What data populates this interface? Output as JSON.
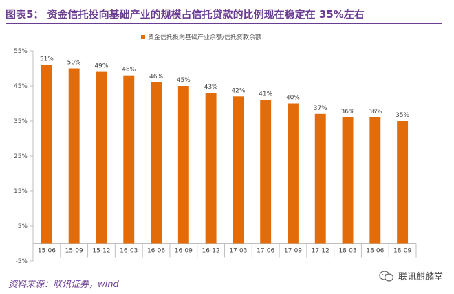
{
  "header": {
    "title": "图表5：  资金信托投向基础产业的规模占信托贷款的比例现在稳定在 35%左右"
  },
  "footer": {
    "source": "资料来源：联讯证券，wind",
    "watermark": "联讯麒麟堂"
  },
  "colors": {
    "bar": "#e36c0a",
    "title": "#6b3d92"
  },
  "chart_data": {
    "type": "bar",
    "title": "",
    "xlabel": "",
    "ylabel": "",
    "categories": [
      "15-06",
      "15-09",
      "15-12",
      "16-03",
      "16-06",
      "16-09",
      "16-12",
      "17-03",
      "17-06",
      "17-09",
      "17-12",
      "18-03",
      "18-06",
      "18-09"
    ],
    "series": [
      {
        "name": "资金信托投向基础产业余额/信托贷款余额",
        "values": [
          51,
          50,
          49,
          48,
          46,
          45,
          43,
          42,
          41,
          40,
          37,
          36,
          36,
          35
        ],
        "labels": [
          "51%",
          "50%",
          "49%",
          "48%",
          "46%",
          "45%",
          "43%",
          "42%",
          "41%",
          "40%",
          "37%",
          "36%",
          "36%",
          "35%"
        ]
      }
    ],
    "ylim": [
      -5,
      55
    ],
    "yticks": [
      -5,
      5,
      15,
      25,
      35,
      45,
      55
    ],
    "ytick_labels": [
      "-5%",
      "5%",
      "15%",
      "25%",
      "35%",
      "45%",
      "55%"
    ],
    "legend_position": "top-center",
    "grid": false
  }
}
